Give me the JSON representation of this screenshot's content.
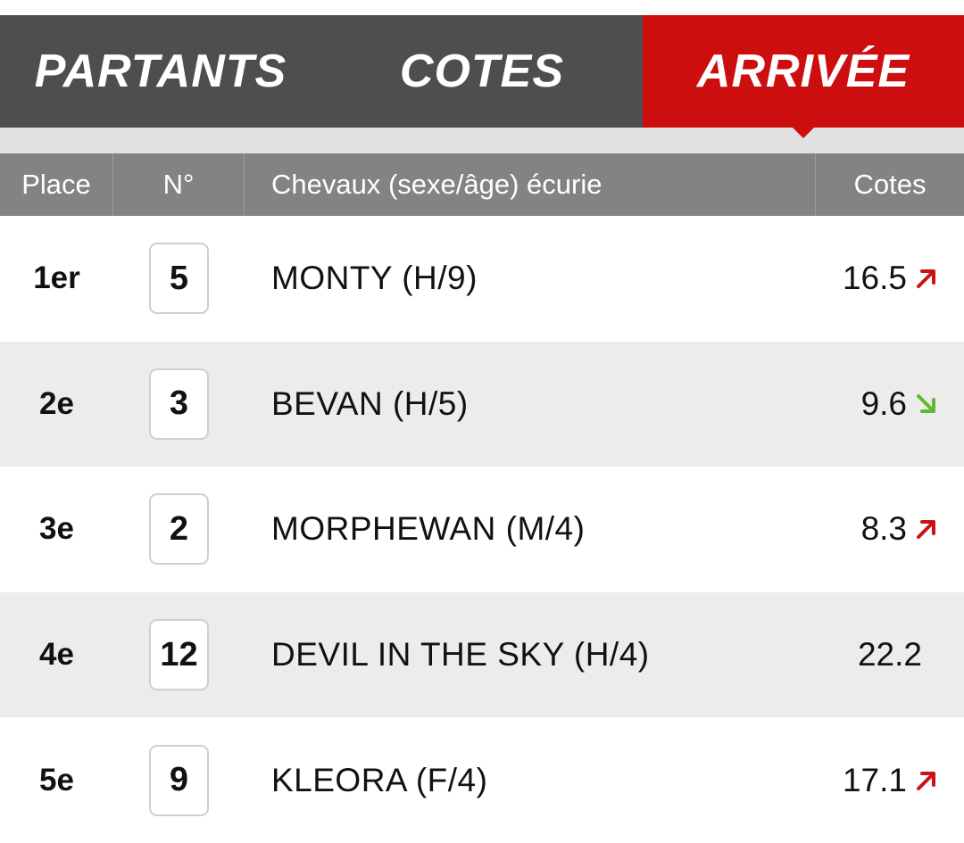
{
  "tabs": [
    {
      "label": "PARTANTS",
      "active": false
    },
    {
      "label": "COTES",
      "active": false
    },
    {
      "label": "ARRIVÉE",
      "active": true
    }
  ],
  "table": {
    "headers": {
      "place": "Place",
      "number": "N°",
      "horse": "Chevaux (sexe/âge) écurie",
      "odds": "Cotes"
    },
    "rows": [
      {
        "place": "1er",
        "number": "5",
        "horse": "MONTY (H/9)",
        "odds": "16.5",
        "trend": "up"
      },
      {
        "place": "2e",
        "number": "3",
        "horse": "BEVAN (H/5)",
        "odds": "9.6",
        "trend": "down"
      },
      {
        "place": "3e",
        "number": "2",
        "horse": "MORPHEWAN (M/4)",
        "odds": "8.3",
        "trend": "up"
      },
      {
        "place": "4e",
        "number": "12",
        "horse": "DEVIL IN THE SKY (H/4)",
        "odds": "22.2",
        "trend": "none"
      },
      {
        "place": "5e",
        "number": "9",
        "horse": "KLEORA (F/4)",
        "odds": "17.1",
        "trend": "up"
      }
    ]
  },
  "colors": {
    "tab_bar": "#4e4e4e",
    "tab_active": "#cc0e0e",
    "header_bg": "#838383",
    "trend_up": "#c81414",
    "trend_down": "#5dbb2e"
  }
}
